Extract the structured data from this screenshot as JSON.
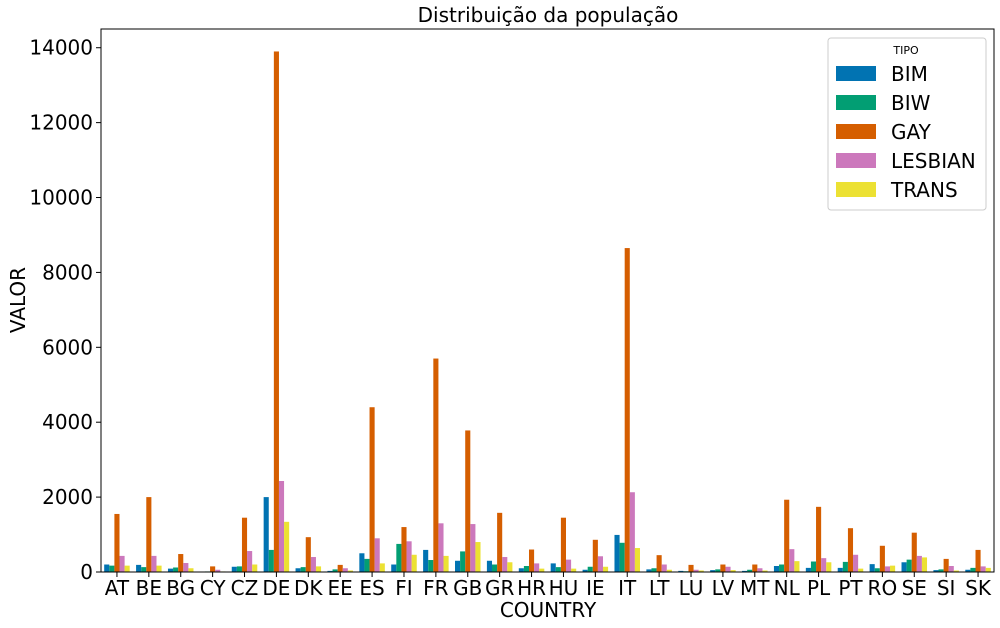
{
  "chart_data": {
    "type": "bar",
    "title": "Distribuição da população",
    "xlabel": "COUNTRY",
    "ylabel": "VALOR",
    "ylim": [
      0,
      14500
    ],
    "yticks": [
      0,
      2000,
      4000,
      6000,
      8000,
      10000,
      12000,
      14000
    ],
    "ytick_labels": [
      "0",
      "2000",
      "4000",
      "6000",
      "8000",
      "10000",
      "12000",
      "14000"
    ],
    "grid": false,
    "legend": {
      "title": "TIPO",
      "placement": "top-right"
    },
    "categories": [
      "AT",
      "BE",
      "BG",
      "CY",
      "CZ",
      "DE",
      "DK",
      "EE",
      "ES",
      "FI",
      "FR",
      "GB",
      "GR",
      "HR",
      "HU",
      "IE",
      "IT",
      "LT",
      "LU",
      "LV",
      "MT",
      "NL",
      "PL",
      "PT",
      "RO",
      "SE",
      "SI",
      "SK"
    ],
    "series": [
      {
        "name": "BIM",
        "color": "#0173b2",
        "values": [
          200,
          190,
          90,
          10,
          140,
          2000,
          100,
          30,
          500,
          200,
          590,
          300,
          300,
          100,
          230,
          60,
          990,
          70,
          30,
          50,
          30,
          160,
          110,
          110,
          210,
          260,
          50,
          60
        ]
      },
      {
        "name": "BIW",
        "color": "#029e73",
        "values": [
          170,
          130,
          120,
          15,
          150,
          590,
          130,
          70,
          350,
          750,
          320,
          550,
          200,
          160,
          130,
          140,
          780,
          100,
          20,
          70,
          60,
          200,
          280,
          270,
          100,
          330,
          70,
          110
        ]
      },
      {
        "name": "GAY",
        "color": "#d55e00",
        "values": [
          1550,
          2000,
          480,
          150,
          1450,
          13900,
          930,
          190,
          4400,
          1200,
          5700,
          3780,
          1580,
          600,
          1450,
          860,
          8650,
          450,
          190,
          200,
          200,
          1930,
          1740,
          1170,
          700,
          1050,
          350,
          590
        ]
      },
      {
        "name": "LESBIAN",
        "color": "#cc78bc",
        "values": [
          430,
          430,
          240,
          60,
          560,
          2430,
          400,
          100,
          900,
          820,
          1300,
          1280,
          400,
          230,
          330,
          420,
          2130,
          200,
          60,
          140,
          100,
          610,
          370,
          460,
          150,
          430,
          160,
          150
        ]
      },
      {
        "name": "TRANS",
        "color": "#ece133",
        "values": [
          170,
          170,
          100,
          15,
          200,
          1340,
          150,
          40,
          230,
          460,
          430,
          800,
          260,
          90,
          90,
          140,
          640,
          60,
          40,
          50,
          40,
          290,
          260,
          90,
          170,
          390,
          40,
          110
        ]
      }
    ]
  }
}
